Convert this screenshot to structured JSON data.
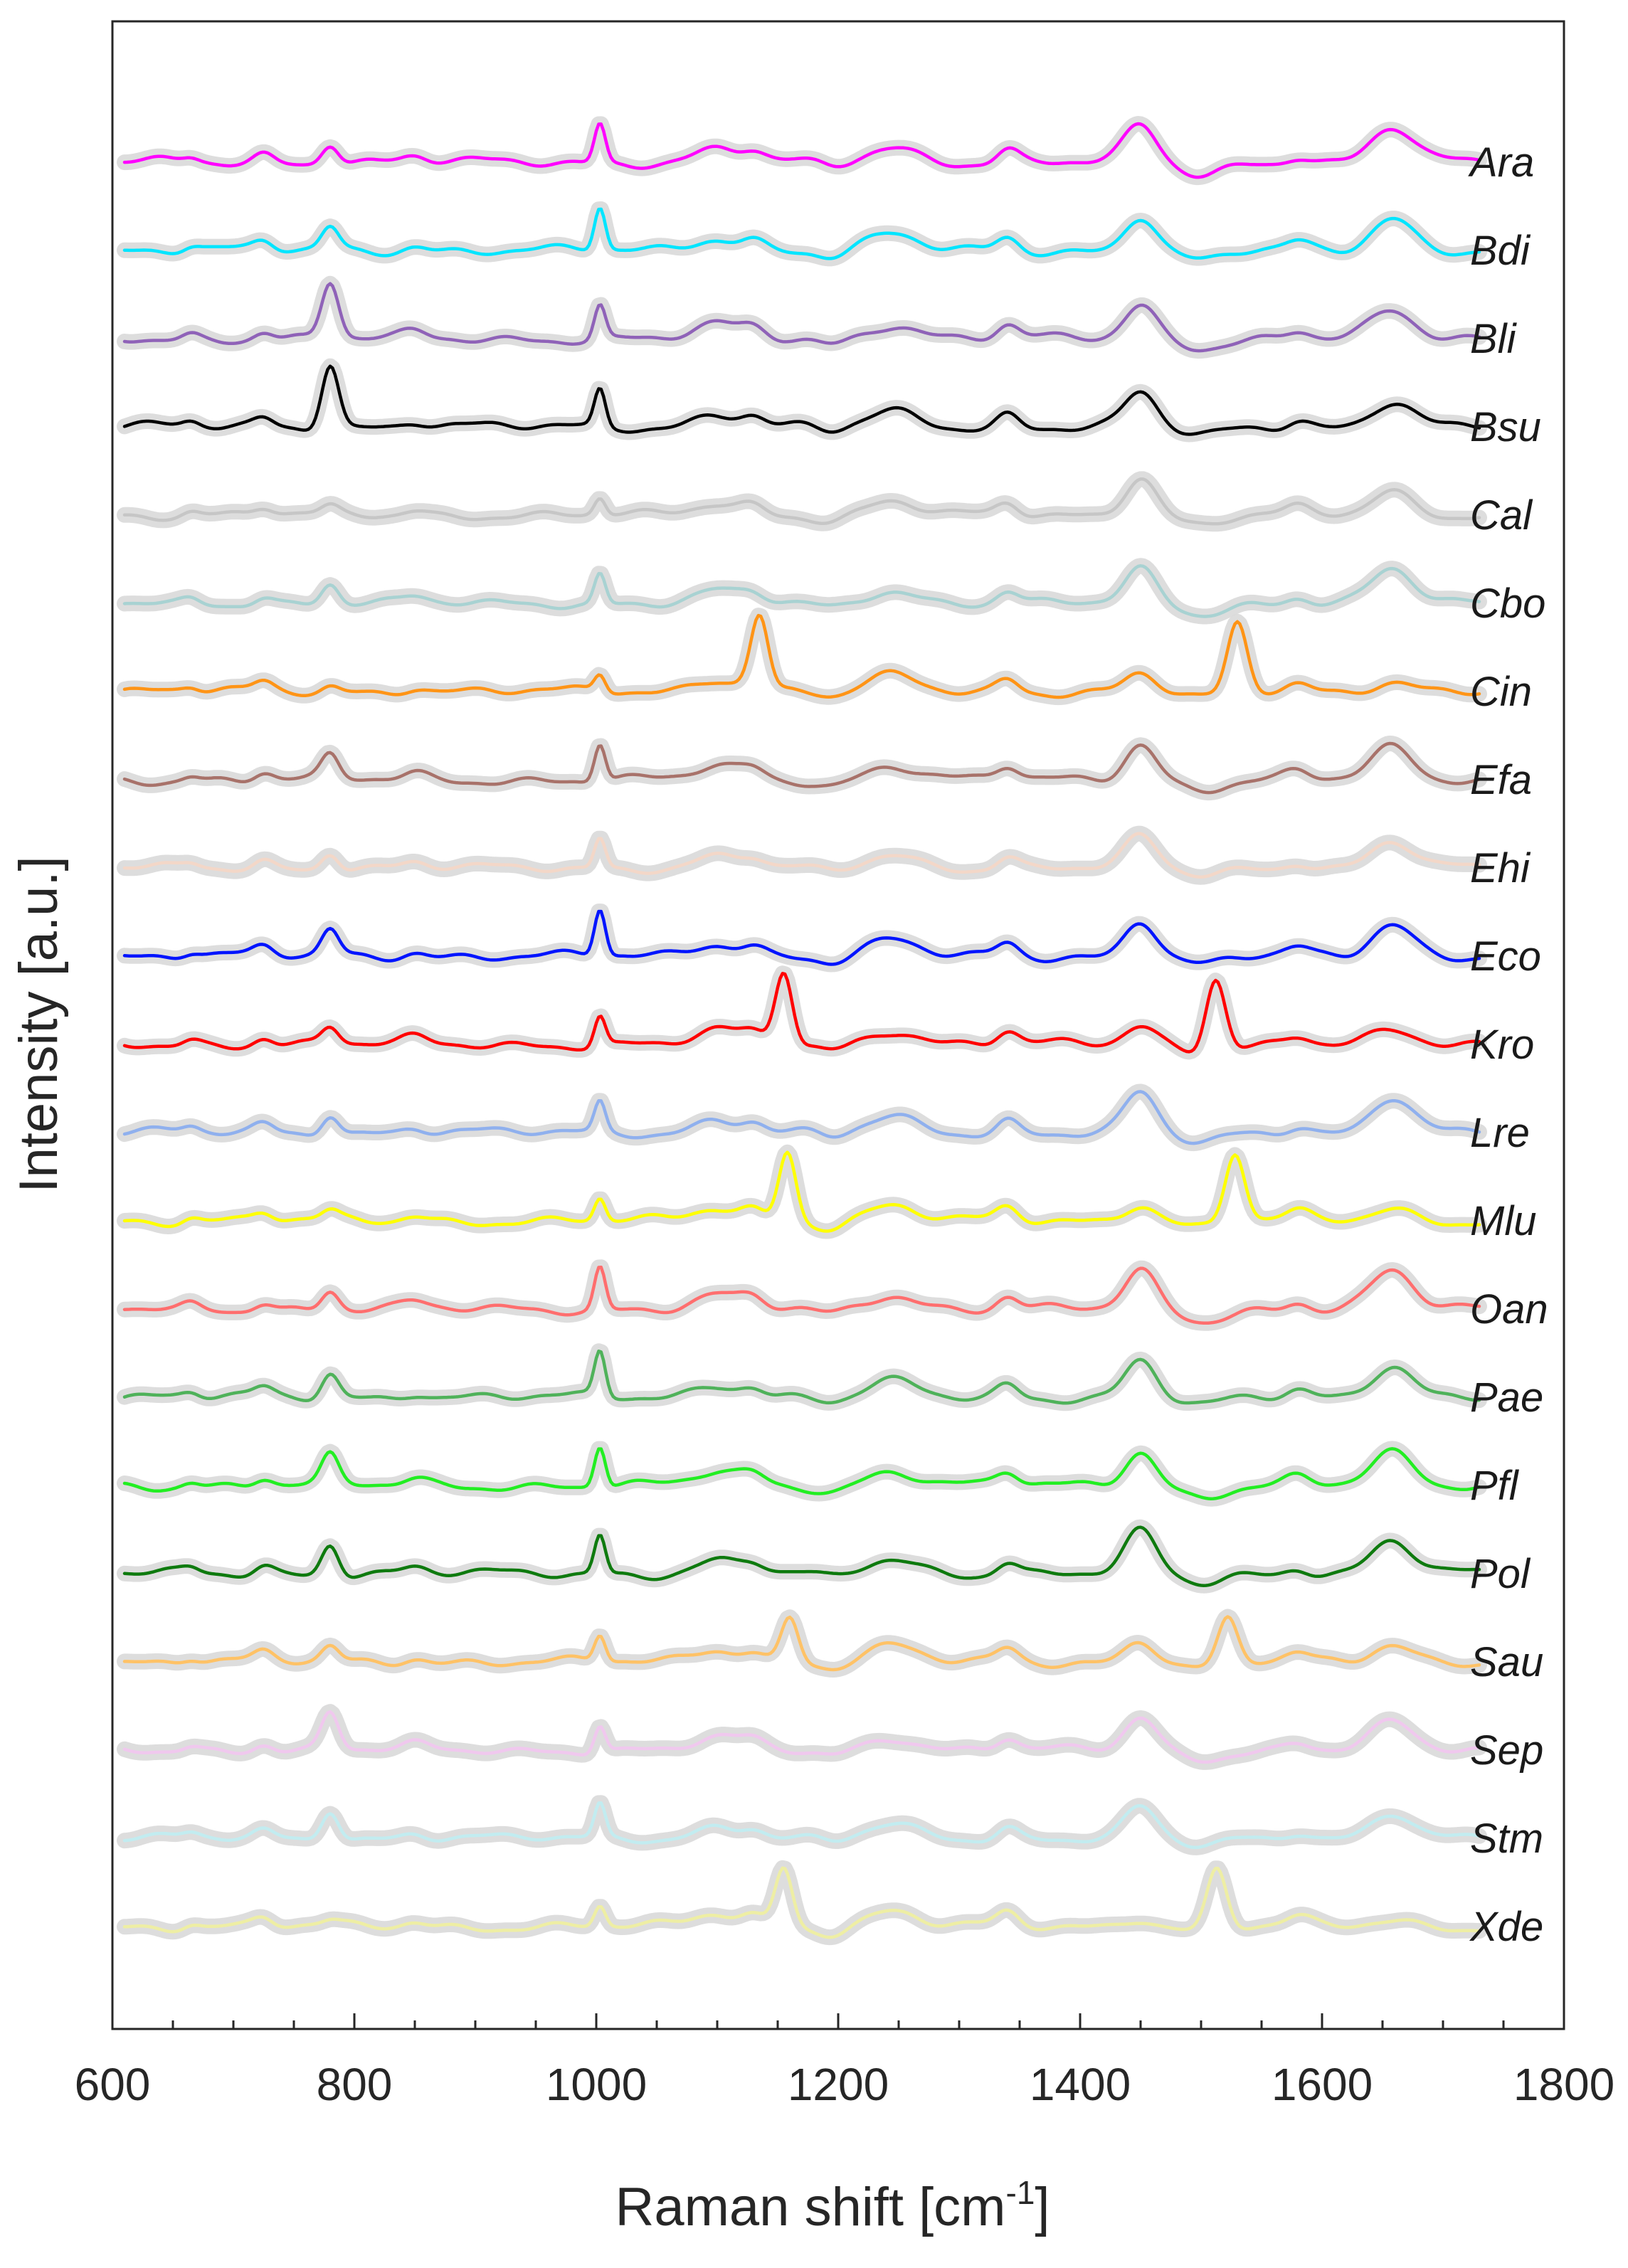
{
  "chart_data": {
    "type": "line",
    "title": "",
    "xlabel": "Raman shift [cm",
    "xlabel_superscript": "-1",
    "xlabel_suffix": "]",
    "ylabel": "Intensity [a.u.]",
    "xlim": [
      600,
      1800
    ],
    "x_range": [
      610,
      1730
    ],
    "xticks": [
      600,
      800,
      1000,
      1200,
      1400,
      1600,
      1800
    ],
    "yticks_shown": false,
    "grid": false,
    "legend": "right of each trace",
    "common_peaks": [
      {
        "x": 780,
        "w": 7
      },
      {
        "x": 1003,
        "w": 4
      },
      {
        "x": 1100,
        "w": 18
      },
      {
        "x": 1130,
        "w": 10
      },
      {
        "x": 1245,
        "w": 20
      },
      {
        "x": 1340,
        "w": 9
      },
      {
        "x": 1450,
        "w": 12
      },
      {
        "x": 1580,
        "w": 10
      },
      {
        "x": 1660,
        "w": 17
      }
    ],
    "series": [
      {
        "name": "Ara",
        "color": "#ff00ff",
        "baseline": 0,
        "scale": 1.0,
        "p780": 0.55,
        "p1003": 1.05,
        "p1450": 0.95,
        "p1660": 0.95,
        "carot": null,
        "dip1500": 0.35
      },
      {
        "name": "Bdi",
        "color": "#00e5ff",
        "baseline": 1,
        "scale": 1.0,
        "p780": 0.6,
        "p1003": 1.15,
        "p1450": 0.95,
        "p1660": 0.9,
        "carot": null,
        "dip1500": 0.3
      },
      {
        "name": "Bli",
        "color": "#8f62b8",
        "baseline": 2,
        "scale": 1.0,
        "p780": 1.5,
        "p1003": 0.9,
        "p1450": 0.9,
        "p1660": 0.7,
        "carot": null,
        "dip1500": 0.2
      },
      {
        "name": "Bsu",
        "color": "#000000",
        "baseline": 3,
        "scale": 1.0,
        "p780": 1.75,
        "p1003": 1.0,
        "p1450": 0.9,
        "p1660": 0.7,
        "carot": null,
        "dip1500": 0.25
      },
      {
        "name": "Cal",
        "color": "#c6c6c6",
        "baseline": 4,
        "scale": 0.9,
        "p780": 0.2,
        "p1003": 0.5,
        "p1450": 1.2,
        "p1660": 0.7,
        "carot": null,
        "dip1500": 0.3
      },
      {
        "name": "Cbo",
        "color": "#a8d2d2",
        "baseline": 5,
        "scale": 0.9,
        "p780": 0.6,
        "p1003": 0.9,
        "p1450": 1.0,
        "p1660": 1.0,
        "carot": null,
        "dip1500": 0.3
      },
      {
        "name": "Cin",
        "color": "#ff9416",
        "baseline": 6,
        "scale": 1.0,
        "p780": 0.15,
        "p1003": 0.45,
        "p1450": 0.5,
        "p1660": 0.3,
        "carot": [
          1135,
          1530
        ],
        "carot_h": 1.85,
        "dip1500": 0.2
      },
      {
        "name": "Efa",
        "color": "#a8726a",
        "baseline": 7,
        "scale": 1.0,
        "p780": 0.6,
        "p1003": 1.0,
        "p1450": 1.0,
        "p1660": 0.85,
        "carot": null,
        "dip1500": 0.25
      },
      {
        "name": "Ehi",
        "color": "#f3d7c8",
        "baseline": 8,
        "scale": 0.9,
        "p780": 0.5,
        "p1003": 0.9,
        "p1450": 0.9,
        "p1660": 0.8,
        "carot": null,
        "dip1500": 0.2
      },
      {
        "name": "Eco",
        "color": "#0014ff",
        "baseline": 9,
        "scale": 1.0,
        "p780": 0.7,
        "p1003": 1.25,
        "p1450": 1.0,
        "p1660": 0.9,
        "carot": null,
        "dip1500": 0.25
      },
      {
        "name": "Kro",
        "color": "#ff0000",
        "baseline": 10,
        "scale": 1.0,
        "p780": 0.45,
        "p1003": 0.8,
        "p1450": 0.5,
        "p1660": 0.3,
        "carot": [
          1155,
          1512
        ],
        "carot_h": 2.0,
        "dip1500": 0.2
      },
      {
        "name": "Lre",
        "color": "#8fb0ee",
        "baseline": 11,
        "scale": 1.0,
        "p780": 0.55,
        "p1003": 0.8,
        "p1450": 1.05,
        "p1660": 1.0,
        "carot": null,
        "dip1500": 0.3
      },
      {
        "name": "Mlu",
        "color": "#ffff00",
        "baseline": 12,
        "scale": 1.0,
        "p780": 0.2,
        "p1003": 0.6,
        "p1450": 0.5,
        "p1660": 0.3,
        "carot": [
          1158,
          1528
        ],
        "carot_h": 1.9,
        "dip1500": 0.15
      },
      {
        "name": "Oan",
        "color": "#ff6e6e",
        "baseline": 13,
        "scale": 1.0,
        "p780": 0.5,
        "p1003": 1.15,
        "p1450": 1.0,
        "p1660": 1.0,
        "carot": null,
        "dip1500": 0.3
      },
      {
        "name": "Pae",
        "color": "#4fb25a",
        "baseline": 14,
        "scale": 1.0,
        "p780": 0.65,
        "p1003": 1.2,
        "p1450": 1.0,
        "p1660": 0.9,
        "carot": null,
        "dip1500": 0.25
      },
      {
        "name": "Pfl",
        "color": "#22ee22",
        "baseline": 15,
        "scale": 1.0,
        "p780": 0.75,
        "p1003": 1.1,
        "p1450": 0.95,
        "p1660": 0.85,
        "carot": null,
        "dip1500": 0.3
      },
      {
        "name": "Pol",
        "color": "#0e7a0e",
        "baseline": 16,
        "scale": 1.0,
        "p780": 0.85,
        "p1003": 1.05,
        "p1450": 1.1,
        "p1660": 0.9,
        "carot": null,
        "dip1500": 0.25
      },
      {
        "name": "Sau",
        "color": "#ffc266",
        "baseline": 17,
        "scale": 1.0,
        "p780": 0.4,
        "p1003": 0.7,
        "p1450": 0.6,
        "p1660": 0.5,
        "carot": [
          1160,
          1522
        ],
        "carot_h": 1.2,
        "dip1500": 0.2
      },
      {
        "name": "Sep",
        "color": "#f0c8ee",
        "baseline": 18,
        "scale": 0.9,
        "p780": 1.1,
        "p1003": 0.8,
        "p1450": 1.0,
        "p1660": 0.8,
        "carot": null,
        "dip1500": 0.25
      },
      {
        "name": "Stm",
        "color": "#c2ecf0",
        "baseline": 19,
        "scale": 0.9,
        "p780": 0.9,
        "p1003": 1.0,
        "p1450": 0.9,
        "p1660": 0.8,
        "carot": null,
        "dip1500": 0.25
      },
      {
        "name": "Xde",
        "color": "#eeeea4",
        "baseline": 20,
        "scale": 1.0,
        "p780": 0.1,
        "p1003": 0.55,
        "p1450": 0.25,
        "p1660": 0.15,
        "carot": [
          1155,
          1513
        ],
        "carot_h": 1.6,
        "dip1500": 0.1
      }
    ]
  }
}
